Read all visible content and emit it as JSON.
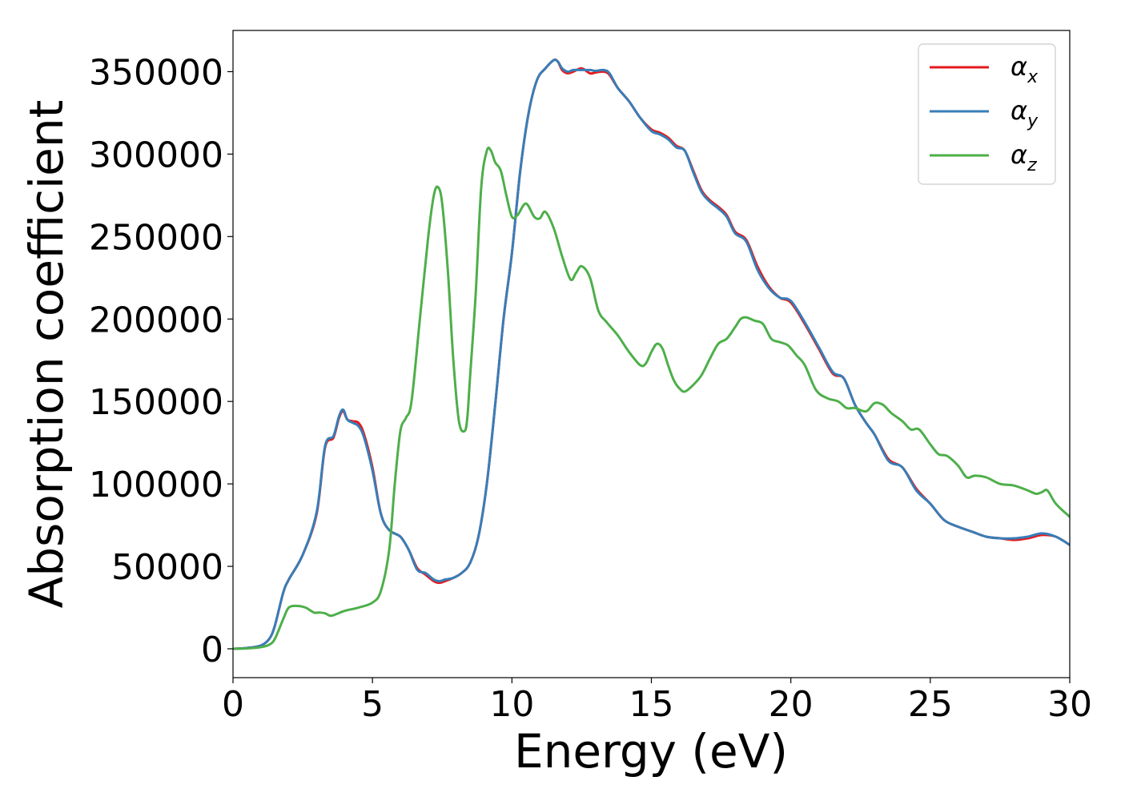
{
  "chart_data": {
    "type": "line",
    "xlabel": "Energy (eV)",
    "ylabel": "Absorption coefficient",
    "xlim": [
      0,
      30
    ],
    "ylim": [
      -17500,
      375000
    ],
    "xticks": [
      0,
      5,
      10,
      15,
      20,
      25,
      30
    ],
    "xtick_labels": [
      "0",
      "5",
      "10",
      "15",
      "20",
      "25",
      "30"
    ],
    "yticks": [
      0,
      50000,
      100000,
      150000,
      200000,
      250000,
      300000,
      350000
    ],
    "ytick_labels": [
      "0",
      "50000",
      "100000",
      "150000",
      "200000",
      "250000",
      "300000",
      "350000"
    ],
    "grid": false,
    "legend_position": "top-right",
    "series": [
      {
        "name": "αx",
        "legend_base": "α",
        "legend_sub": "x",
        "color": "#e41a1c",
        "x": [
          0,
          0.5,
          1.0,
          1.3,
          1.5,
          1.8,
          2.0,
          2.5,
          3.0,
          3.3,
          3.6,
          3.8,
          3.95,
          4.1,
          4.3,
          4.5,
          4.7,
          5.0,
          5.3,
          5.6,
          6.0,
          6.3,
          6.6,
          6.9,
          7.2,
          7.4,
          7.6,
          7.9,
          8.2,
          8.5,
          8.8,
          9.1,
          9.4,
          9.7,
          10.0,
          10.3,
          10.6,
          10.9,
          11.2,
          11.5,
          11.65,
          11.8,
          12.0,
          12.2,
          12.5,
          12.8,
          13.0,
          13.3,
          13.5,
          13.8,
          14.2,
          14.6,
          15.0,
          15.3,
          15.6,
          15.9,
          16.2,
          16.5,
          16.8,
          17.1,
          17.4,
          17.7,
          18.0,
          18.4,
          18.8,
          19.2,
          19.6,
          20.0,
          20.5,
          21.0,
          21.5,
          21.9,
          22.3,
          22.7,
          23.0,
          23.5,
          24.0,
          24.5,
          25.0,
          25.5,
          26.0,
          26.5,
          27.0,
          27.5,
          28.0,
          28.5,
          29.0,
          29.5,
          30.0
        ],
        "values": [
          0,
          500,
          2000,
          6000,
          14000,
          34000,
          42000,
          57000,
          82000,
          122000,
          128000,
          140000,
          144000,
          139000,
          138000,
          137000,
          130000,
          110000,
          82000,
          72000,
          68000,
          60000,
          49000,
          45000,
          41000,
          40000,
          41000,
          43000,
          46000,
          52000,
          68000,
          100000,
          148000,
          200000,
          240000,
          290000,
          325000,
          345000,
          352000,
          357000,
          356000,
          351000,
          349000,
          350000,
          352000,
          349000,
          349500,
          350000,
          348000,
          340000,
          332000,
          322000,
          315000,
          313000,
          310000,
          305000,
          302000,
          290000,
          278000,
          272000,
          268000,
          263000,
          253000,
          248000,
          232000,
          220000,
          213000,
          210000,
          197000,
          182000,
          167000,
          164000,
          148000,
          137000,
          130000,
          115000,
          110000,
          97000,
          88000,
          78000,
          74000,
          71000,
          68000,
          67000,
          66000,
          67000,
          69000,
          68000,
          63000
        ]
      },
      {
        "name": "αy",
        "legend_base": "α",
        "legend_sub": "y",
        "color": "#377eb8",
        "x": [
          0,
          0.5,
          1.0,
          1.3,
          1.5,
          1.8,
          2.0,
          2.5,
          3.0,
          3.3,
          3.6,
          3.8,
          3.95,
          4.1,
          4.3,
          4.5,
          4.7,
          5.0,
          5.3,
          5.6,
          6.0,
          6.3,
          6.6,
          6.9,
          7.2,
          7.4,
          7.6,
          7.9,
          8.2,
          8.5,
          8.8,
          9.1,
          9.4,
          9.7,
          10.0,
          10.3,
          10.6,
          10.9,
          11.2,
          11.5,
          11.65,
          11.8,
          12.0,
          12.2,
          12.5,
          12.8,
          13.0,
          13.3,
          13.5,
          13.8,
          14.2,
          14.6,
          15.0,
          15.3,
          15.6,
          15.9,
          16.2,
          16.5,
          16.8,
          17.1,
          17.4,
          17.7,
          18.0,
          18.4,
          18.8,
          19.2,
          19.6,
          20.0,
          20.5,
          21.0,
          21.5,
          21.9,
          22.3,
          22.7,
          23.0,
          23.5,
          24.0,
          24.5,
          25.0,
          25.5,
          26.0,
          26.5,
          27.0,
          27.5,
          28.0,
          28.5,
          29.0,
          29.5,
          30.0
        ],
        "values": [
          0,
          500,
          2000,
          6000,
          14000,
          34000,
          42000,
          57000,
          83000,
          123000,
          129000,
          141000,
          145000,
          139000,
          137000,
          135000,
          128000,
          108000,
          82000,
          72000,
          68000,
          60000,
          48000,
          46000,
          42000,
          41000,
          42000,
          43000,
          46000,
          52000,
          68000,
          100000,
          148000,
          200000,
          240000,
          290000,
          325000,
          345000,
          352000,
          357000,
          356000,
          352000,
          350000,
          351000,
          351000,
          351000,
          350500,
          351000,
          349000,
          340000,
          332000,
          322000,
          314000,
          312000,
          309000,
          304000,
          302000,
          289000,
          277000,
          271000,
          267000,
          262000,
          252000,
          247000,
          230000,
          219000,
          213000,
          211000,
          198000,
          183000,
          168000,
          164000,
          148000,
          137000,
          130000,
          114000,
          110000,
          96000,
          88000,
          78000,
          74000,
          71000,
          68000,
          67000,
          67000,
          68000,
          70000,
          68000,
          63000
        ]
      },
      {
        "name": "αz",
        "legend_base": "α",
        "legend_sub": "z",
        "color": "#4daf4a",
        "x": [
          0,
          0.5,
          1.0,
          1.3,
          1.5,
          1.8,
          2.0,
          2.3,
          2.6,
          2.9,
          3.1,
          3.3,
          3.5,
          3.7,
          4.0,
          4.5,
          5.0,
          5.3,
          5.6,
          5.8,
          6.0,
          6.2,
          6.4,
          6.7,
          7.0,
          7.2,
          7.35,
          7.5,
          7.7,
          7.9,
          8.1,
          8.3,
          8.4,
          8.5,
          8.7,
          8.9,
          9.1,
          9.25,
          9.4,
          9.6,
          9.8,
          10.0,
          10.2,
          10.5,
          10.8,
          11.0,
          11.2,
          11.5,
          11.8,
          12.1,
          12.3,
          12.5,
          12.8,
          13.1,
          13.4,
          13.8,
          14.2,
          14.6,
          14.8,
          15.0,
          15.2,
          15.4,
          15.6,
          15.8,
          16.0,
          16.2,
          16.5,
          16.8,
          17.1,
          17.4,
          17.7,
          18.0,
          18.2,
          18.4,
          18.7,
          19.0,
          19.3,
          19.6,
          19.9,
          20.2,
          20.5,
          20.9,
          21.3,
          21.7,
          22.0,
          22.3,
          22.7,
          23.0,
          23.3,
          23.6,
          24.0,
          24.3,
          24.6,
          25.0,
          25.3,
          25.6,
          26.0,
          26.3,
          26.6,
          27.0,
          27.5,
          28.0,
          28.5,
          28.8,
          29.0,
          29.2,
          29.5,
          30.0
        ],
        "values": [
          0,
          200,
          1000,
          2500,
          6000,
          18000,
          25000,
          26000,
          25000,
          22000,
          22000,
          21500,
          20000,
          21000,
          23000,
          25000,
          28000,
          35000,
          60000,
          100000,
          132000,
          140000,
          150000,
          200000,
          250000,
          275000,
          280000,
          270000,
          230000,
          175000,
          138000,
          132000,
          140000,
          165000,
          215000,
          280000,
          302000,
          302000,
          295000,
          290000,
          275000,
          262000,
          263000,
          270000,
          262000,
          261000,
          265000,
          255000,
          238000,
          224000,
          228000,
          232000,
          225000,
          205000,
          198000,
          190000,
          180000,
          172000,
          173000,
          180000,
          185000,
          182000,
          172000,
          163000,
          158000,
          156000,
          160000,
          166000,
          176000,
          185000,
          188000,
          195000,
          200000,
          201000,
          199000,
          197000,
          188000,
          186000,
          184000,
          178000,
          172000,
          157000,
          152000,
          150000,
          146000,
          146000,
          144000,
          149000,
          148000,
          143000,
          138000,
          133000,
          133000,
          124000,
          118000,
          117000,
          111000,
          104000,
          105000,
          104000,
          100000,
          99000,
          96000,
          94000,
          95000,
          96000,
          88000,
          80000
        ]
      }
    ]
  }
}
